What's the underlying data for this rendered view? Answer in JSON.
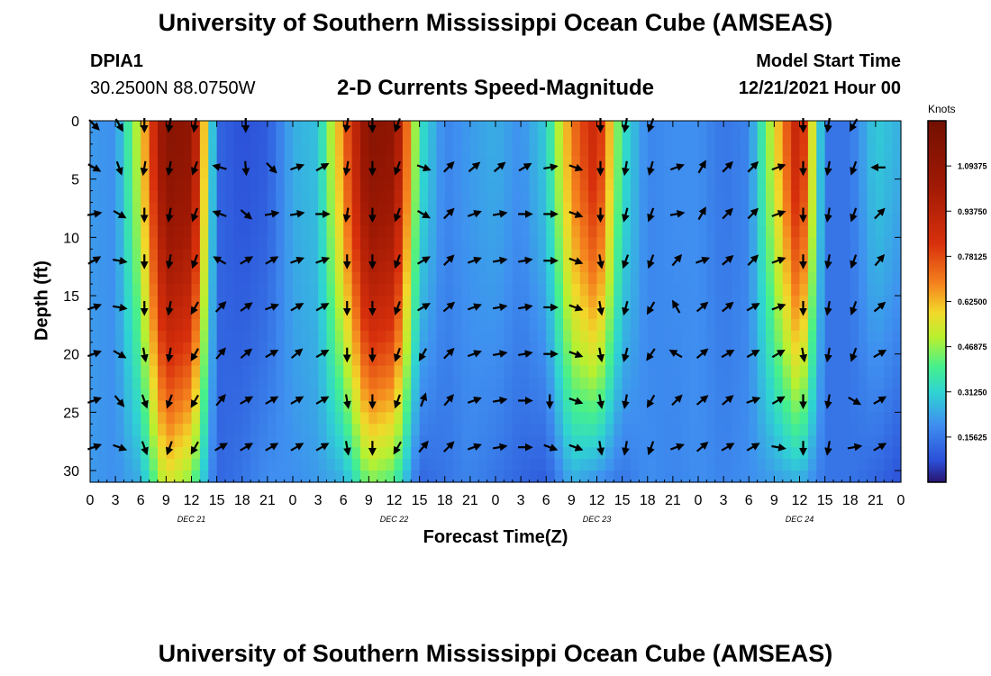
{
  "header": {
    "title": "University of Southern Mississippi Ocean Cube (AMSEAS)",
    "station": "DPIA1",
    "coords": "30.2500N  88.0750W",
    "model_start_label": "Model Start Time",
    "model_start_value": "12/21/2021 Hour 00"
  },
  "footer": {
    "title": "University of Southern Mississippi Ocean Cube (AMSEAS)"
  },
  "chart_data": {
    "type": "heatmap",
    "title": "2-D Currents Speed-Magnitude",
    "xlabel": "Forecast Time(Z)",
    "ylabel": "Depth (ft)",
    "xlim": [
      0,
      96
    ],
    "ylim": [
      0,
      31
    ],
    "x_tick_values": [
      0,
      3,
      6,
      9,
      12,
      15,
      18,
      21,
      24,
      27,
      30,
      33,
      36,
      39,
      42,
      45,
      48,
      51,
      54,
      57,
      60,
      63,
      66,
      69,
      72,
      75,
      78,
      81,
      84,
      87,
      90,
      93,
      96
    ],
    "x_tick_labels": [
      "0",
      "3",
      "6",
      "9",
      "12",
      "15",
      "18",
      "21",
      "0",
      "3",
      "6",
      "9",
      "12",
      "15",
      "18",
      "21",
      "0",
      "3",
      "6",
      "9",
      "12",
      "15",
      "18",
      "21",
      "0",
      "3",
      "6",
      "9",
      "12",
      "15",
      "18",
      "21",
      "0"
    ],
    "y_tick_values": [
      0,
      5,
      10,
      15,
      20,
      25,
      30
    ],
    "y_tick_labels": [
      "0",
      "5",
      "10",
      "15",
      "20",
      "25",
      "30"
    ],
    "day_labels": [
      {
        "x": 12,
        "text": "DEC 21"
      },
      {
        "x": 36,
        "text": "DEC 22"
      },
      {
        "x": 60,
        "text": "DEC 23"
      },
      {
        "x": 84,
        "text": "DEC 24"
      }
    ],
    "colorbar": {
      "units": "Knots",
      "min": 0,
      "max": 1.25,
      "tick_values": [
        0.15625,
        0.3125,
        0.46875,
        0.625,
        0.78125,
        0.9375,
        1.09375
      ],
      "tick_labels": [
        "0.15625",
        "0.31250",
        "0.46875",
        "0.62500",
        "0.78125",
        "0.93750",
        "1.09375"
      ]
    },
    "speed_profile_knots": {
      "note": "approximate speed at surface (top) and bottom by forecast hour",
      "hours": [
        0,
        3,
        6,
        9,
        12,
        15,
        18,
        21,
        24,
        27,
        30,
        33,
        36,
        39,
        42,
        45,
        48,
        51,
        54,
        57,
        60,
        63,
        66,
        69,
        72,
        75,
        78,
        81,
        84,
        87,
        90,
        93,
        96
      ],
      "surface": [
        0.22,
        0.2,
        0.55,
        1.15,
        1.1,
        0.12,
        0.08,
        0.1,
        0.25,
        0.28,
        0.7,
        1.15,
        1.1,
        0.35,
        0.18,
        0.22,
        0.25,
        0.2,
        0.3,
        0.7,
        0.9,
        0.35,
        0.18,
        0.2,
        0.2,
        0.15,
        0.18,
        0.55,
        0.95,
        0.15,
        0.15,
        0.3,
        0.25
      ],
      "bottom": [
        0.22,
        0.2,
        0.25,
        0.55,
        0.45,
        0.12,
        0.15,
        0.2,
        0.2,
        0.22,
        0.25,
        0.45,
        0.4,
        0.12,
        0.15,
        0.18,
        0.15,
        0.12,
        0.1,
        0.25,
        0.2,
        0.15,
        0.2,
        0.18,
        0.2,
        0.18,
        0.2,
        0.22,
        0.25,
        0.15,
        0.15,
        0.12,
        0.08
      ]
    },
    "vector_hours": [
      0,
      3,
      6,
      9,
      12,
      15,
      18,
      21,
      24,
      27,
      30,
      33,
      36,
      39,
      42,
      45,
      48,
      51,
      54,
      57,
      60,
      63,
      66,
      69,
      72,
      75,
      78,
      81,
      84,
      87,
      90,
      93
    ],
    "vector_depths_ft": [
      0,
      4,
      8,
      12,
      16,
      20,
      24,
      28
    ],
    "vector_direction_deg": [
      [
        135,
        150,
        180,
        190,
        190,
        null,
        180,
        null,
        null,
        null,
        190,
        180,
        200,
        null,
        null,
        null,
        null,
        null,
        null,
        null,
        180,
        190,
        200,
        null,
        null,
        null,
        null,
        null,
        180,
        190,
        210,
        null
      ],
      [
        120,
        160,
        190,
        190,
        200,
        285,
        175,
        135,
        70,
        60,
        190,
        180,
        200,
        110,
        45,
        50,
        50,
        60,
        80,
        110,
        180,
        190,
        195,
        70,
        30,
        45,
        45,
        70,
        180,
        190,
        200,
        270
      ],
      [
        80,
        120,
        180,
        190,
        200,
        290,
        130,
        80,
        80,
        90,
        190,
        180,
        200,
        120,
        45,
        70,
        80,
        90,
        90,
        110,
        180,
        195,
        200,
        80,
        30,
        45,
        45,
        70,
        180,
        190,
        200,
        45
      ],
      [
        60,
        100,
        180,
        190,
        200,
        300,
        60,
        60,
        70,
        70,
        180,
        180,
        200,
        60,
        45,
        70,
        80,
        80,
        90,
        110,
        170,
        200,
        200,
        40,
        70,
        50,
        45,
        70,
        180,
        190,
        200,
        40
      ],
      [
        70,
        100,
        180,
        190,
        210,
        45,
        55,
        70,
        60,
        60,
        180,
        180,
        200,
        60,
        50,
        70,
        80,
        80,
        90,
        110,
        170,
        195,
        210,
        330,
        50,
        50,
        60,
        70,
        180,
        190,
        200,
        50
      ],
      [
        70,
        120,
        170,
        190,
        210,
        40,
        50,
        60,
        50,
        60,
        180,
        180,
        200,
        210,
        45,
        70,
        80,
        80,
        90,
        110,
        170,
        195,
        215,
        300,
        50,
        60,
        60,
        60,
        170,
        190,
        200,
        60
      ],
      [
        70,
        140,
        160,
        200,
        210,
        40,
        60,
        60,
        60,
        60,
        170,
        180,
        200,
        20,
        40,
        70,
        80,
        90,
        180,
        110,
        170,
        190,
        210,
        45,
        50,
        50,
        70,
        60,
        180,
        190,
        120,
        60
      ],
      [
        70,
        110,
        160,
        200,
        210,
        60,
        60,
        60,
        60,
        60,
        170,
        180,
        210,
        40,
        45,
        70,
        80,
        90,
        110,
        110,
        170,
        190,
        200,
        70,
        50,
        60,
        60,
        100,
        180,
        190,
        80,
        60
      ]
    ]
  }
}
